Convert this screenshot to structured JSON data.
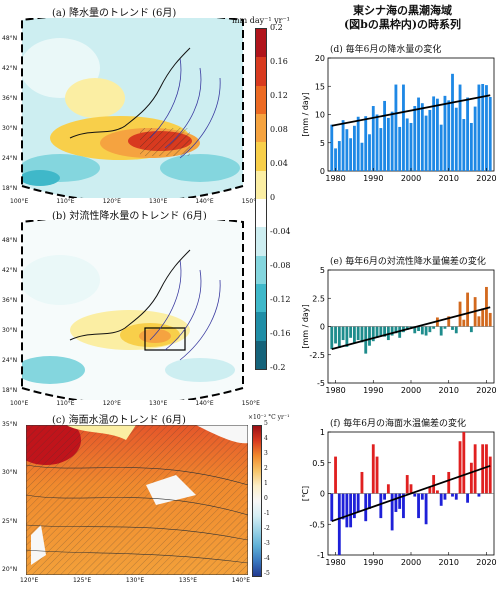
{
  "left": {
    "panel_a_title": "(a) 降水量のトレンド (6月)",
    "panel_b_title": "(b) 対流性降水量のトレンド (6月)",
    "panel_c_title": "(c) 海面水温のトレンド (6月)",
    "map_lat_labels": [
      "48°N",
      "42°N",
      "36°N",
      "30°N",
      "24°N",
      "18°N"
    ],
    "map_lon_labels": [
      "100°E",
      "110°E",
      "120°E",
      "130°E",
      "140°E",
      "150°E"
    ],
    "precip_colorbar_unit": "mm day⁻¹ yr⁻¹",
    "precip_colorbar_ticks": [
      "0.2",
      "0.16",
      "0.12",
      "0.08",
      "0.04",
      "0",
      "-0.04",
      "-0.08",
      "-0.12",
      "-0.16",
      "-0.2"
    ],
    "precip_colorbar_colors": [
      "#b0141b",
      "#d83a1f",
      "#ec6a23",
      "#f5a340",
      "#f8cf4a",
      "#fbeea3",
      "#ffffff",
      "#cdeef1",
      "#84d6de",
      "#3fb8c9",
      "#1f8ea6",
      "#15637a"
    ],
    "sst_colorbar_unit": "×10⁻² °C yr⁻¹",
    "sst_colorbar_ticks": [
      "5",
      "4",
      "3",
      "2",
      "1",
      "0",
      "-1",
      "-2",
      "-3",
      "-4",
      "-5"
    ],
    "sst_lat_labels": [
      "35°N",
      "30°N",
      "25°N",
      "20°N"
    ],
    "sst_lon_labels": [
      "120°E",
      "125°E",
      "130°E",
      "135°E",
      "140°E"
    ]
  },
  "right": {
    "header_line1": "東シナ海の黒潮海域",
    "header_line2": "(図bの黒枠内)の時系列"
  },
  "chart_data": [
    {
      "type": "bar",
      "title": "(d) 毎年6月の降水量の変化",
      "ylabel": "[mm / day]",
      "ylim": [
        0,
        20
      ],
      "yticks": [
        0,
        5,
        10,
        15,
        20
      ],
      "xticks": [
        1980,
        1990,
        2000,
        2010,
        2020
      ],
      "x": [
        1979,
        1980,
        1981,
        1982,
        1983,
        1984,
        1985,
        1986,
        1987,
        1988,
        1989,
        1990,
        1991,
        1992,
        1993,
        1994,
        1995,
        1996,
        1997,
        1998,
        1999,
        2000,
        2001,
        2002,
        2003,
        2004,
        2005,
        2006,
        2007,
        2008,
        2009,
        2010,
        2011,
        2012,
        2013,
        2014,
        2015,
        2016,
        2017,
        2018,
        2019,
        2020,
        2021
      ],
      "values": [
        8.2,
        4.0,
        5.3,
        9.0,
        7.4,
        5.8,
        8.0,
        9.6,
        5.0,
        9.7,
        6.5,
        11.5,
        10.0,
        7.6,
        12.4,
        9.4,
        10.5,
        15.3,
        7.8,
        15.3,
        9.3,
        8.5,
        11.5,
        13.0,
        12.0,
        9.8,
        10.8,
        13.2,
        12.8,
        8.2,
        13.3,
        12.5,
        17.2,
        11.2,
        15.3,
        9.2,
        13.0,
        8.5,
        11.4,
        15.3,
        15.4,
        15.2,
        13.1
      ],
      "bar_color": "#1e88e5",
      "trend_line": {
        "x": [
          1979,
          2021
        ],
        "y": [
          8.0,
          13.4
        ]
      }
    },
    {
      "type": "bar",
      "title": "(e) 毎年6月の対流性降水量偏差の変化",
      "ylabel": "[mm / day]",
      "ylim": [
        -5,
        5
      ],
      "yticks": [
        -5,
        -2.5,
        0,
        2.5,
        5
      ],
      "xticks": [
        1980,
        1990,
        2000,
        2010,
        2020
      ],
      "x": [
        1979,
        1980,
        1981,
        1982,
        1983,
        1984,
        1985,
        1986,
        1987,
        1988,
        1989,
        1990,
        1991,
        1992,
        1993,
        1994,
        1995,
        1996,
        1997,
        1998,
        1999,
        2000,
        2001,
        2002,
        2003,
        2004,
        2005,
        2006,
        2007,
        2008,
        2009,
        2010,
        2011,
        2012,
        2013,
        2014,
        2015,
        2016,
        2017,
        2018,
        2019,
        2020,
        2021
      ],
      "values": [
        -2.0,
        -1.5,
        -1.9,
        -1.2,
        -1.8,
        -1.0,
        -1.5,
        -1.2,
        -1.4,
        -2.4,
        -1.7,
        -1.3,
        -1.0,
        -0.8,
        -0.9,
        -1.2,
        -0.8,
        -0.6,
        -1.0,
        -0.5,
        -0.3,
        -0.2,
        -0.6,
        -0.4,
        -0.7,
        -0.8,
        -0.5,
        -0.2,
        0.8,
        -0.8,
        -0.2,
        0.9,
        -0.3,
        -0.6,
        2.2,
        0.6,
        3.0,
        -0.5,
        2.6,
        0.9,
        1.6,
        3.5,
        1.2
      ],
      "positive_color": "#d2691e",
      "negative_color": "#1e8c8c",
      "trend_line": {
        "x": [
          1979,
          2021
        ],
        "y": [
          -2.0,
          1.7
        ]
      }
    },
    {
      "type": "bar",
      "title": "(f) 毎年6月の海面水温偏差の変化",
      "ylabel": "[℃]",
      "ylim": [
        -1,
        1
      ],
      "yticks": [
        -1,
        -0.5,
        0,
        0.5,
        1
      ],
      "xticks": [
        1980,
        1990,
        2000,
        2010,
        2020
      ],
      "x": [
        1979,
        1980,
        1981,
        1982,
        1983,
        1984,
        1985,
        1986,
        1987,
        1988,
        1989,
        1990,
        1991,
        1992,
        1993,
        1994,
        1995,
        1996,
        1997,
        1998,
        1999,
        2000,
        2001,
        2002,
        2003,
        2004,
        2005,
        2006,
        2007,
        2008,
        2009,
        2010,
        2011,
        2012,
        2013,
        2014,
        2015,
        2016,
        2017,
        2018,
        2019,
        2020,
        2021
      ],
      "values": [
        -0.45,
        0.6,
        -1.0,
        -0.42,
        -0.55,
        -0.55,
        -0.4,
        -0.3,
        0.35,
        -0.45,
        -0.25,
        0.8,
        0.6,
        -0.4,
        -0.1,
        0.15,
        -0.6,
        -0.3,
        -0.25,
        -0.4,
        0.3,
        0.15,
        -0.05,
        -0.4,
        -0.1,
        -0.5,
        0.1,
        0.3,
        0.05,
        -0.2,
        -0.1,
        0.35,
        -0.05,
        -0.1,
        0.85,
        1.0,
        -0.15,
        0.5,
        0.8,
        -0.05,
        0.8,
        0.8,
        0.6
      ],
      "positive_color": "#e02020",
      "negative_color": "#1e20d8",
      "trend_line": {
        "x": [
          1979,
          2021
        ],
        "y": [
          -0.45,
          0.45
        ]
      }
    }
  ]
}
